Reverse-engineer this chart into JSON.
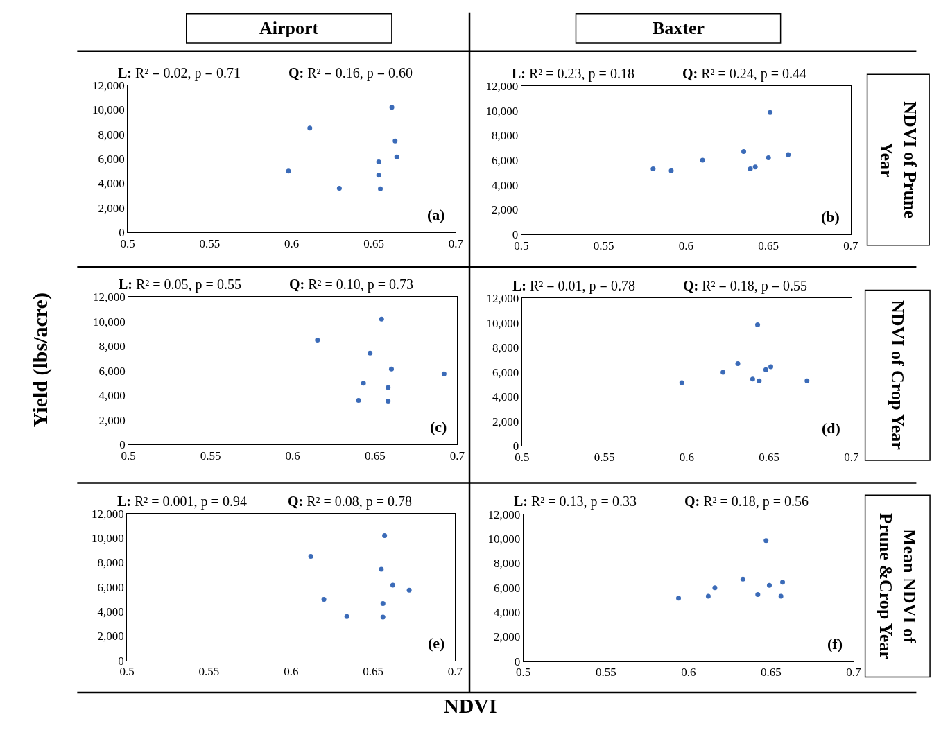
{
  "chart_data": [
    {
      "type": "scatter",
      "annotations": [
        "L: R² = 0.02, p = 0.71",
        "Q: R² = 0.16, p = 0.60",
        "(a)"
      ],
      "x": [
        0.598,
        0.611,
        0.629,
        0.653,
        0.653,
        0.654,
        0.661,
        0.663,
        0.664
      ],
      "values": [
        5000,
        8500,
        3600,
        5750,
        4650,
        3550,
        10200,
        7450,
        6150
      ],
      "color": "#3b6bb8",
      "marker": "circle",
      "xlim": [
        0.5,
        0.7
      ],
      "ylim": [
        0,
        12000
      ],
      "xticks": [
        0.5,
        0.55,
        0.6,
        0.65,
        0.7
      ],
      "yticks": [
        0,
        {
          "value": 2000,
          "label": "2,000"
        },
        {
          "value": 4000,
          "label": "4,000"
        },
        {
          "value": 6000,
          "label": "6,000"
        },
        {
          "value": 8000,
          "label": "8,000"
        },
        {
          "value": 10000,
          "label": "10,000"
        },
        {
          "value": 12000,
          "label": "12,000"
        }
      ]
    },
    {
      "type": "scatter",
      "annotations": [
        "L: R² = 0.23, p = 0.18",
        "Q: R² = 0.24, p = 0.44",
        "(b)"
      ],
      "x": [
        0.58,
        0.591,
        0.61,
        0.635,
        0.639,
        0.642,
        0.65,
        0.651,
        0.662
      ],
      "values": [
        5300,
        5150,
        6000,
        6700,
        5300,
        5450,
        6200,
        9850,
        6450
      ],
      "color": "#3b6bb8",
      "marker": "circle",
      "xlim": [
        0.5,
        0.7
      ],
      "ylim": [
        0,
        12000
      ],
      "xticks": [
        0.5,
        0.55,
        0.6,
        0.65,
        0.7
      ],
      "yticks": [
        0,
        {
          "value": 2000,
          "label": "2,000"
        },
        {
          "value": 4000,
          "label": "4,000"
        },
        {
          "value": 6000,
          "label": "6,000"
        },
        {
          "value": 8000,
          "label": "8,000"
        },
        {
          "value": 10000,
          "label": "10,000"
        },
        {
          "value": 12000,
          "label": "12,000"
        }
      ]
    },
    {
      "type": "scatter",
      "annotations": [
        "L: R² = 0.05, p = 0.55",
        "Q: R² = 0.10, p = 0.73",
        "(c)"
      ],
      "x": [
        0.615,
        0.64,
        0.643,
        0.647,
        0.654,
        0.658,
        0.658,
        0.66,
        0.692
      ],
      "values": [
        8500,
        3600,
        5000,
        7450,
        10200,
        3550,
        4650,
        6150,
        5750
      ],
      "color": "#3b6bb8",
      "marker": "circle",
      "xlim": [
        0.5,
        0.7
      ],
      "ylim": [
        0,
        12000
      ],
      "xticks": [
        0.5,
        0.55,
        0.6,
        0.65,
        0.7
      ],
      "yticks": [
        0,
        {
          "value": 2000,
          "label": "2,000"
        },
        {
          "value": 4000,
          "label": "4,000"
        },
        {
          "value": 6000,
          "label": "6,000"
        },
        {
          "value": 8000,
          "label": "8,000"
        },
        {
          "value": 10000,
          "label": "10,000"
        },
        {
          "value": 12000,
          "label": "12,000"
        }
      ]
    },
    {
      "type": "scatter",
      "annotations": [
        "L: R² = 0.01, p = 0.78",
        "Q: R² = 0.18, p = 0.55",
        "(d)"
      ],
      "x": [
        0.597,
        0.622,
        0.631,
        0.64,
        0.643,
        0.644,
        0.648,
        0.651,
        0.673
      ],
      "values": [
        5150,
        6000,
        6700,
        5450,
        9850,
        5300,
        6200,
        6450,
        5300
      ],
      "color": "#3b6bb8",
      "marker": "circle",
      "xlim": [
        0.5,
        0.7
      ],
      "ylim": [
        0,
        12000
      ],
      "xticks": [
        0.5,
        0.55,
        0.6,
        0.65,
        0.7
      ],
      "yticks": [
        0,
        {
          "value": 2000,
          "label": "2,000"
        },
        {
          "value": 4000,
          "label": "4,000"
        },
        {
          "value": 6000,
          "label": "6,000"
        },
        {
          "value": 8000,
          "label": "8,000"
        },
        {
          "value": 10000,
          "label": "10,000"
        },
        {
          "value": 12000,
          "label": "12,000"
        }
      ]
    },
    {
      "type": "scatter",
      "annotations": [
        "L: R² = 0.001, p = 0.94",
        "Q: R² = 0.08, p = 0.78",
        "(e)"
      ],
      "x": [
        0.612,
        0.62,
        0.634,
        0.655,
        0.656,
        0.656,
        0.657,
        0.662,
        0.672
      ],
      "values": [
        8500,
        5000,
        3600,
        7450,
        4650,
        3550,
        10200,
        6150,
        5750
      ],
      "color": "#3b6bb8",
      "marker": "circle",
      "xlim": [
        0.5,
        0.7
      ],
      "ylim": [
        0,
        12000
      ],
      "xticks": [
        0.5,
        0.55,
        0.6,
        0.65,
        0.7
      ],
      "yticks": [
        0,
        {
          "value": 2000,
          "label": "2,000"
        },
        {
          "value": 4000,
          "label": "4,000"
        },
        {
          "value": 6000,
          "label": "6,000"
        },
        {
          "value": 8000,
          "label": "8,000"
        },
        {
          "value": 10000,
          "label": "10,000"
        },
        {
          "value": 12000,
          "label": "12,000"
        }
      ]
    },
    {
      "type": "scatter",
      "annotations": [
        "L: R² = 0.13, p = 0.33",
        "Q: R² = 0.18, p = 0.56",
        "(f)"
      ],
      "x": [
        0.594,
        0.612,
        0.616,
        0.633,
        0.642,
        0.647,
        0.649,
        0.656,
        0.657
      ],
      "values": [
        5150,
        5300,
        6000,
        6700,
        5450,
        9850,
        6200,
        5300,
        6450
      ],
      "color": "#3b6bb8",
      "marker": "circle",
      "xlim": [
        0.5,
        0.7
      ],
      "ylim": [
        0,
        12000
      ],
      "xticks": [
        0.5,
        0.55,
        0.6,
        0.65,
        0.7
      ],
      "yticks": [
        0,
        {
          "value": 2000,
          "label": "2,000"
        },
        {
          "value": 4000,
          "label": "4,000"
        },
        {
          "value": 6000,
          "label": "6,000"
        },
        {
          "value": 8000,
          "label": "8,000"
        },
        {
          "value": 10000,
          "label": "10,000"
        },
        {
          "value": 12000,
          "label": "12,000"
        }
      ]
    },
    {
      "type": "other",
      "xlabel": "NDVI",
      "ylabel": "Yield (lbs/acre)",
      "annotations": [
        "Airport",
        "Baxter",
        "NDVI of Prune\nYear",
        "NDVI of Crop Year",
        "Mean NDVI of\nPrune &Crop Year"
      ]
    }
  ]
}
